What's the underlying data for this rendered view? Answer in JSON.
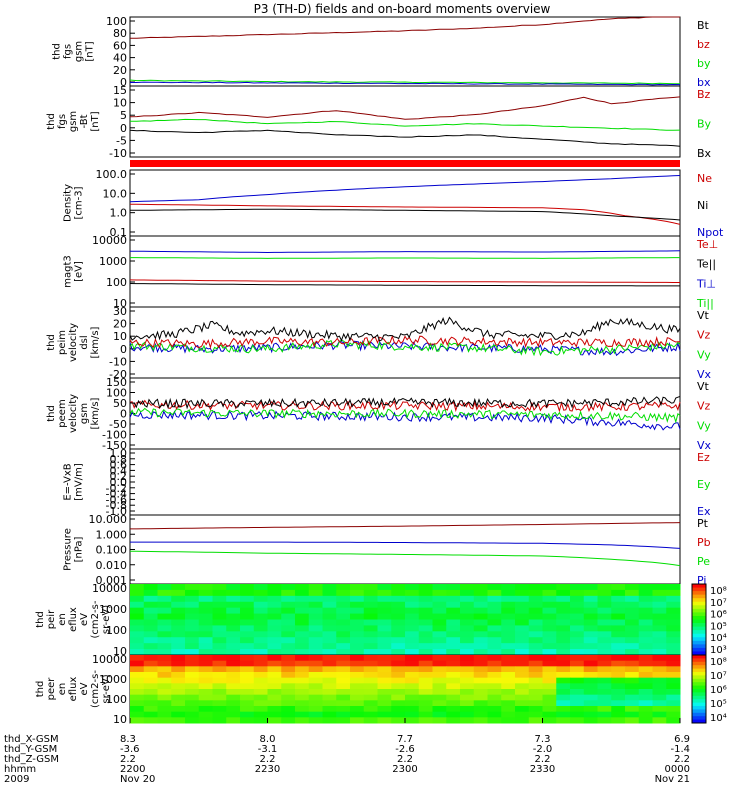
{
  "title": "P3 (TH-D) fields and on-board moments overview",
  "colors": {
    "black": "#000000",
    "red": "#cc0000",
    "darkred": "#8b0000",
    "green": "#00dd00",
    "blue": "#0000cc",
    "orange": "#ff2200"
  },
  "chart_data": [
    {
      "type": "line",
      "name": "fgs-total",
      "ylabel_lines": [
        "thd",
        "fgs",
        "gsm",
        "[nT]"
      ],
      "yticks": [
        "100",
        "80",
        "60",
        "40",
        "20",
        "0"
      ],
      "legend": [
        {
          "label": "Bt",
          "color": "black"
        },
        {
          "label": "bz",
          "color": "red"
        },
        {
          "label": "by",
          "color": "green"
        },
        {
          "label": "bx",
          "color": "blue"
        }
      ],
      "ylim": [
        -10,
        100
      ],
      "series": [
        {
          "label": "Bt",
          "color": "darkred",
          "x": [
            0,
            0.5,
            1,
            1.5,
            2,
            2.5,
            3,
            3.2,
            3.5,
            4
          ],
          "y": [
            66,
            69,
            72,
            75,
            78,
            82,
            88,
            92,
            97,
            102
          ]
        },
        {
          "label": "by",
          "color": "green",
          "x": [
            0,
            1,
            2,
            3,
            4
          ],
          "y": [
            -1,
            -3,
            -4,
            -5,
            -6
          ]
        },
        {
          "label": "bx",
          "color": "blue",
          "x": [
            0,
            1,
            2,
            3,
            4
          ],
          "y": [
            -4,
            -5,
            -6,
            -7,
            -8
          ]
        }
      ]
    },
    {
      "type": "line",
      "name": "fgs-components",
      "ylabel_lines": [
        "thd",
        "fgs",
        "gsm",
        "-Bt",
        "[nT]"
      ],
      "yticks": [
        "15",
        "10",
        "5",
        "0",
        "-5",
        "-10"
      ],
      "legend": [
        {
          "label": "Bz",
          "color": "red"
        },
        {
          "label": "By",
          "color": "green"
        },
        {
          "label": "Bx",
          "color": "black"
        }
      ],
      "ylim": [
        -15,
        17
      ],
      "series": [
        {
          "label": "Bz",
          "color": "darkred",
          "x": [
            0,
            0.5,
            1,
            1.5,
            2,
            2.5,
            3,
            3.3,
            3.5,
            3.8,
            4
          ],
          "y": [
            3,
            5,
            3,
            6,
            2,
            4,
            8,
            12,
            9,
            11,
            12
          ]
        },
        {
          "label": "By",
          "color": "green",
          "x": [
            0,
            0.5,
            1,
            1.5,
            2,
            2.5,
            3,
            3.5,
            4
          ],
          "y": [
            1,
            2,
            0,
            1,
            -1,
            0,
            -1,
            -2,
            -3
          ]
        },
        {
          "label": "Bx",
          "color": "black",
          "x": [
            0,
            0.5,
            1,
            1.5,
            2,
            2.5,
            3,
            3.5,
            4
          ],
          "y": [
            -3,
            -4,
            -3,
            -5,
            -6,
            -5,
            -7,
            -9,
            -10
          ]
        }
      ]
    },
    {
      "type": "line",
      "name": "density",
      "log": true,
      "ylabel_lines": [
        "Density",
        "[cm-3]"
      ],
      "yticks": [
        "100.0",
        "10.0",
        "1.0",
        "0.1"
      ],
      "legend": [
        {
          "label": "Ne",
          "color": "red"
        },
        {
          "label": "Ni",
          "color": "black"
        },
        {
          "label": "Npot",
          "color": "blue"
        }
      ],
      "ylim": [
        0.08,
        150
      ],
      "series": [
        {
          "label": "Npot",
          "color": "blue",
          "x": [
            0,
            0.5,
            1,
            1.5,
            2,
            2.5,
            3,
            3.5,
            4
          ],
          "y": [
            4,
            5,
            9,
            15,
            22,
            30,
            40,
            55,
            80
          ]
        },
        {
          "label": "Ne",
          "color": "red",
          "x": [
            0,
            1,
            2,
            3,
            3.3,
            3.6,
            4
          ],
          "y": [
            3,
            2.5,
            2.2,
            2,
            1.6,
            0.8,
            0.3
          ]
        },
        {
          "label": "Ni",
          "color": "black",
          "x": [
            0,
            1,
            2,
            3,
            3.5,
            4
          ],
          "y": [
            1.5,
            1.7,
            1.5,
            1.3,
            0.8,
            0.5
          ]
        }
      ]
    },
    {
      "type": "line",
      "name": "temperature",
      "log": true,
      "ylabel_lines": [
        "magt3",
        "[eV]"
      ],
      "yticks": [
        "10000",
        "1000",
        "100",
        "10"
      ],
      "legend": [
        {
          "label": "Te⊥",
          "color": "red"
        },
        {
          "label": "Te||",
          "color": "black"
        },
        {
          "label": "Ti⊥",
          "color": "blue"
        },
        {
          "label": "Ti||",
          "color": "green"
        }
      ],
      "ylim": [
        8,
        12000
      ],
      "series": [
        {
          "label": "Ti⊥",
          "color": "blue",
          "x": [
            0,
            1,
            2,
            3,
            4
          ],
          "y": [
            2500,
            2200,
            2400,
            2300,
            2600
          ]
        },
        {
          "label": "Ti||",
          "color": "green",
          "x": [
            0,
            1,
            2,
            3,
            4
          ],
          "y": [
            1300,
            1200,
            1250,
            1200,
            1300
          ]
        },
        {
          "label": "Te⊥",
          "color": "red",
          "x": [
            0,
            1,
            2,
            3,
            4
          ],
          "y": [
            130,
            115,
            110,
            105,
            100
          ]
        },
        {
          "label": "Te||",
          "color": "black",
          "x": [
            0,
            1,
            2,
            3,
            4
          ],
          "y": [
            90,
            80,
            75,
            72,
            70
          ]
        }
      ]
    },
    {
      "type": "line",
      "name": "peim-velocity",
      "noise": true,
      "ylabel_lines": [
        "thd",
        "peim",
        "velocity",
        "dsl",
        "[km/s]"
      ],
      "yticks": [
        "30",
        "20",
        "10",
        "0",
        "-10",
        "-20"
      ],
      "legend": [
        {
          "label": "Vt",
          "color": "black"
        },
        {
          "label": "Vz",
          "color": "red"
        },
        {
          "label": "Vy",
          "color": "green"
        },
        {
          "label": "Vx",
          "color": "blue"
        }
      ],
      "ylim": [
        -22,
        32
      ],
      "series": [
        {
          "label": "Vx",
          "color": "blue",
          "x": [
            0,
            0.5,
            1,
            1.5,
            2,
            2.5,
            3,
            3.5,
            4
          ],
          "y": [
            2,
            0,
            1,
            3,
            2,
            1,
            0,
            -2,
            2
          ]
        },
        {
          "label": "Vy",
          "color": "green",
          "x": [
            0,
            0.5,
            1,
            1.5,
            2,
            2.5,
            3,
            3.5,
            4
          ],
          "y": [
            3,
            1,
            0,
            4,
            2,
            1,
            -2,
            0,
            3
          ]
        },
        {
          "label": "Vz",
          "color": "red",
          "x": [
            0,
            0.5,
            1,
            1.5,
            2,
            2.5,
            3,
            3.5,
            4
          ],
          "y": [
            5,
            4,
            6,
            5,
            7,
            6,
            5,
            5,
            6
          ]
        },
        {
          "label": "Vt",
          "color": "black",
          "x": [
            0,
            0.3,
            0.6,
            0.8,
            1,
            1.5,
            2,
            2.3,
            2.6,
            3,
            3.3,
            3.5,
            4
          ],
          "y": [
            10,
            11,
            18,
            12,
            14,
            10,
            9,
            22,
            11,
            10,
            12,
            22,
            14
          ]
        }
      ]
    },
    {
      "type": "line",
      "name": "peem-velocity",
      "noise": true,
      "ylabel_lines": [
        "thd",
        "peem",
        "velocity",
        "gsm",
        "[km/s]"
      ],
      "yticks": [
        "150",
        "100",
        "50",
        "0",
        "-50",
        "-100",
        "-150"
      ],
      "legend": [
        {
          "label": "Vt",
          "color": "black"
        },
        {
          "label": "Vz",
          "color": "red"
        },
        {
          "label": "Vy",
          "color": "green"
        },
        {
          "label": "Vx",
          "color": "blue"
        }
      ],
      "ylim": [
        -160,
        160
      ],
      "series": [
        {
          "label": "Vx",
          "color": "blue",
          "x": [
            0,
            1,
            2,
            3,
            3.5,
            4
          ],
          "y": [
            -5,
            -10,
            -15,
            -20,
            -40,
            -60
          ]
        },
        {
          "label": "Vy",
          "color": "green",
          "x": [
            0,
            1,
            2,
            3,
            3.5,
            4
          ],
          "y": [
            5,
            0,
            0,
            -5,
            -10,
            -20
          ]
        },
        {
          "label": "Vz",
          "color": "red",
          "x": [
            0,
            1,
            2,
            3,
            3.5,
            4
          ],
          "y": [
            40,
            35,
            35,
            30,
            30,
            35
          ]
        },
        {
          "label": "Vt",
          "color": "black",
          "x": [
            0,
            1,
            2,
            3,
            3.5,
            4
          ],
          "y": [
            45,
            45,
            50,
            45,
            50,
            60
          ]
        }
      ]
    },
    {
      "type": "line",
      "name": "efield",
      "ylabel_lines": [
        "E=-VxB",
        "[mV/m]"
      ],
      "yticks": [
        "1.0",
        "0.8",
        "0.6",
        "0.4",
        "0.2",
        "0.0",
        "-0.2",
        "-0.4",
        "-0.6",
        "-0.8",
        "-1.0"
      ],
      "legend": [
        {
          "label": "Ez",
          "color": "red"
        },
        {
          "label": "Ey",
          "color": "green"
        },
        {
          "label": "Ex",
          "color": "blue"
        }
      ],
      "ylim": [
        -1,
        1
      ],
      "series": []
    },
    {
      "type": "line",
      "name": "pressure",
      "log": true,
      "ylabel_lines": [
        "Pressure",
        "[nPa]"
      ],
      "yticks": [
        "10.000",
        "1.000",
        "0.100",
        "0.010",
        "0.001"
      ],
      "legend": [
        {
          "label": "Pt",
          "color": "black"
        },
        {
          "label": "Pb",
          "color": "red"
        },
        {
          "label": "Pe",
          "color": "green"
        },
        {
          "label": "Pi",
          "color": "blue"
        }
      ],
      "ylim": [
        0.0007,
        15
      ],
      "series": [
        {
          "label": "Pt",
          "color": "darkred",
          "x": [
            0,
            1,
            2,
            3,
            4
          ],
          "y": [
            2,
            2.5,
            3,
            3.8,
            5
          ]
        },
        {
          "label": "Pi",
          "color": "blue",
          "x": [
            0,
            1,
            2,
            3,
            3.5,
            4
          ],
          "y": [
            0.3,
            0.3,
            0.28,
            0.25,
            0.2,
            0.12
          ]
        },
        {
          "label": "Pe",
          "color": "green",
          "x": [
            0,
            1,
            2,
            3,
            3.5,
            4
          ],
          "y": [
            0.08,
            0.06,
            0.05,
            0.04,
            0.025,
            0.01
          ]
        }
      ]
    },
    {
      "type": "heatmap",
      "name": "peir-spectrogram",
      "ylabel_lines": [
        "thd",
        "peir",
        "en",
        "eflux",
        "eV",
        "(cm2-s-",
        "sr-eV)"
      ],
      "yticks": [
        "10000",
        "1000",
        "100",
        "10"
      ],
      "colorbar": [
        "10⁸",
        "10⁷",
        "10⁶",
        "10⁵",
        "10⁴",
        "10³"
      ]
    },
    {
      "type": "heatmap",
      "name": "peer-spectrogram",
      "ylabel_lines": [
        "thd",
        "peer",
        "en",
        "eflux",
        "eV",
        "(cm2-s-",
        "sr-eV)"
      ],
      "yticks": [
        "10000",
        "1000",
        "100",
        "10"
      ],
      "colorbar": [
        "10⁸",
        "10⁷",
        "10⁶",
        "10⁵",
        "10⁴"
      ]
    }
  ],
  "xaxis": {
    "row_labels": [
      "thd_X-GSM",
      "thd_Y-GSM",
      "thd_Z-GSM",
      "hhmm",
      "2009"
    ],
    "columns": [
      [
        "8.3",
        "-3.6",
        "2.2",
        "2200",
        "Nov 20"
      ],
      [
        "8.0",
        "-3.1",
        "2.2",
        "2230",
        ""
      ],
      [
        "7.7",
        "-2.6",
        "2.2",
        "2300",
        ""
      ],
      [
        "7.3",
        "-2.0",
        "2.2",
        "2330",
        ""
      ],
      [
        "6.9",
        "-1.4",
        "2.2",
        "0000",
        "Nov 21"
      ]
    ]
  }
}
